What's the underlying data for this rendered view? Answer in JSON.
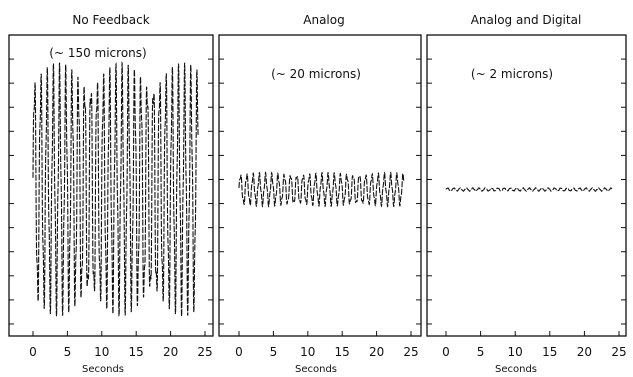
{
  "chart_data": [
    {
      "type": "line",
      "title": "No Feedback",
      "annotation": "(~ 150 microns)",
      "xlabel": "Seconds",
      "ylabel": "",
      "xlim": [
        0,
        25
      ],
      "xticks": [
        "0",
        "5",
        "10",
        "15",
        "20",
        "25"
      ],
      "ylim": [
        -180,
        180
      ],
      "grid": false,
      "series": [
        {
          "frequency_hz": 1.1,
          "duration_s": 24,
          "amplitude_microns": 150
        }
      ]
    },
    {
      "type": "line",
      "title": "Analog",
      "annotation": "(~ 20 microns)",
      "xlabel": "Seconds",
      "ylabel": "",
      "xlim": [
        0,
        25
      ],
      "xticks": [
        "0",
        "5",
        "10",
        "15",
        "20",
        "25"
      ],
      "ylim": [
        -180,
        180
      ],
      "grid": false,
      "series": [
        {
          "frequency_hz": 1.1,
          "duration_s": 24,
          "amplitude_microns": 20
        }
      ]
    },
    {
      "type": "line",
      "title": "Analog and Digital",
      "annotation": "(~ 2 microns)",
      "xlabel": "Seconds",
      "ylabel": "",
      "xlim": [
        0,
        25
      ],
      "xticks": [
        "0",
        "5",
        "10",
        "15",
        "20",
        "25"
      ],
      "ylim": [
        -180,
        180
      ],
      "grid": false,
      "series": [
        {
          "frequency_hz": 1.1,
          "duration_s": 24,
          "amplitude_microns": 2
        }
      ]
    }
  ]
}
